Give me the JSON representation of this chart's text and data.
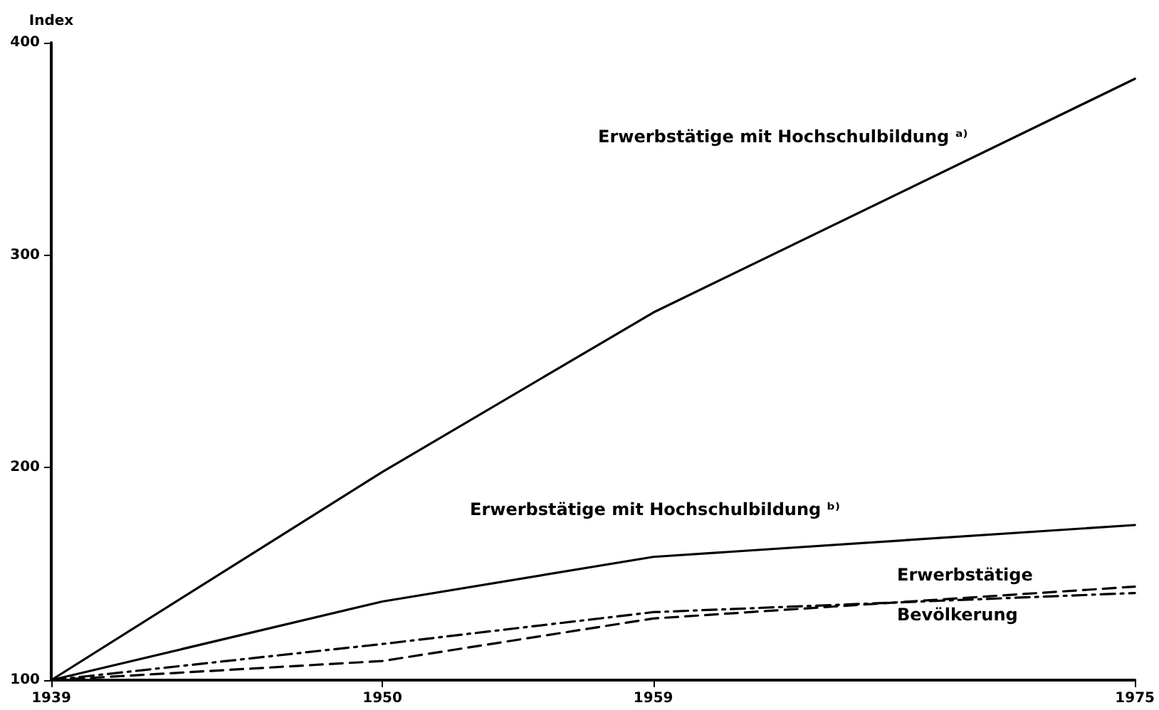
{
  "chart_data": {
    "type": "line",
    "ylabel": "Index",
    "x": [
      1939,
      1950,
      1959,
      1975
    ],
    "xlim": [
      1939,
      1975
    ],
    "xticks": [
      1939,
      1950,
      1959,
      1975
    ],
    "ylim": [
      100,
      400
    ],
    "yticks": [
      100,
      200,
      300,
      400
    ],
    "grid": false,
    "marker": "none",
    "series": [
      {
        "name": "Erwerbstätige mit Hochschulbildung ᵃ⁾",
        "color": "#000000",
        "line_style": "solid",
        "values": [
          100,
          198,
          273,
          383
        ]
      },
      {
        "name": "Erwerbstätige mit Hochschulbildung ᵇ⁾",
        "color": "#000000",
        "line_style": "solid",
        "values": [
          100,
          137,
          158,
          173
        ]
      },
      {
        "name": "Erwerbstätige",
        "color": "#000000",
        "line_style": "dashed",
        "values": [
          100,
          109,
          129,
          144
        ]
      },
      {
        "name": "Bevölkerung",
        "color": "#000000",
        "line_style": "dashdot",
        "values": [
          100,
          117,
          132,
          141
        ]
      }
    ]
  }
}
